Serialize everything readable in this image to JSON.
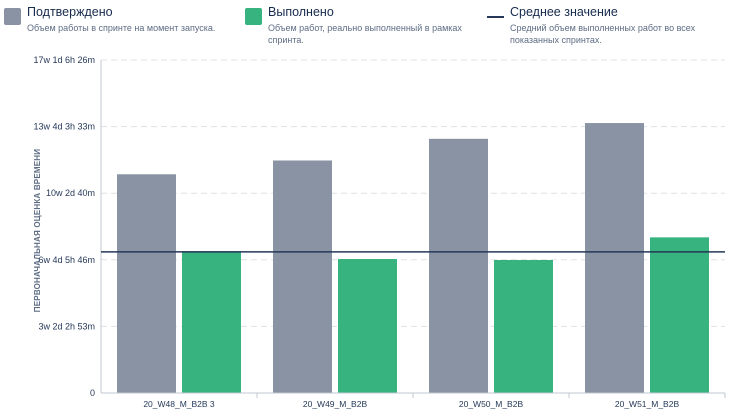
{
  "legend": {
    "confirmed": {
      "title": "Подтверждено",
      "desc": "Объем работы в спринте на момент запуска.",
      "color": "#8993a4"
    },
    "done": {
      "title": "Выполнено",
      "desc": "Объем работ, реально выполненный в рамках спринта.",
      "color": "#36b37e"
    },
    "average": {
      "title": "Среднее значение",
      "desc": "Средний объем выполненных работ во всех показанных спринтах.",
      "color": "#253858"
    }
  },
  "chart_data": {
    "type": "bar",
    "ylabel": "ПЕРВОНАЧАЛЬНАЯ ОЦЕНКА ВРЕМЕНИ",
    "categories": [
      "20_W48_M_B2B 3",
      "20_W49_M_B2B",
      "20_W50_M_B2B",
      "20_W51_M_B2B"
    ],
    "series": [
      {
        "name": "Подтверждено",
        "values": [
          11.1,
          11.8,
          12.9,
          13.7
        ]
      },
      {
        "name": "Выполнено",
        "values": [
          7.2,
          6.8,
          6.75,
          7.9
        ]
      }
    ],
    "average": 7.16,
    "ylim": [
      0,
      16.9
    ],
    "yticks": [
      {
        "value": 0,
        "label": "0"
      },
      {
        "value": 3.38,
        "label": "3w 2d 2h 53m"
      },
      {
        "value": 6.76,
        "label": "6w 4d 5h 46m"
      },
      {
        "value": 10.14,
        "label": "10w 2d 40m"
      },
      {
        "value": 13.52,
        "label": "13w 4d 3h 33m"
      },
      {
        "value": 16.9,
        "label": "17w 1d 6h 26m"
      }
    ],
    "grid": true,
    "legend_position": "top"
  }
}
